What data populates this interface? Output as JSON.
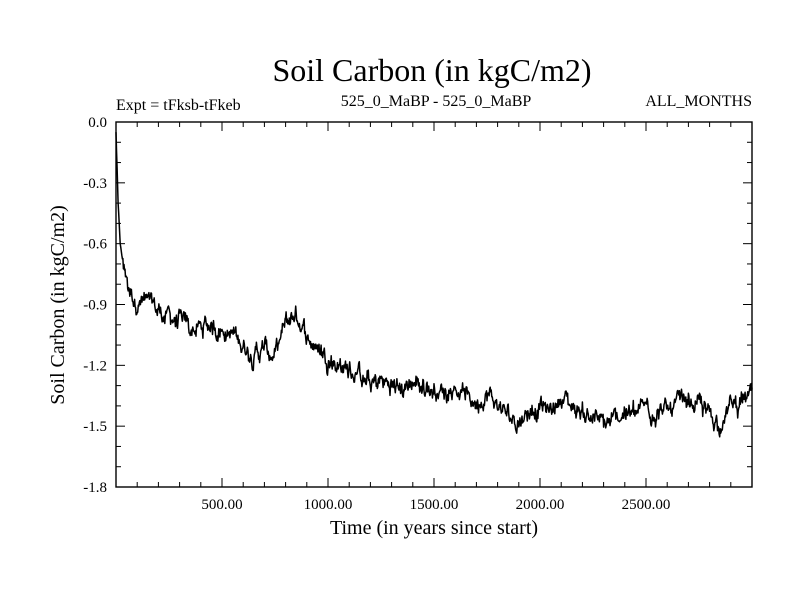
{
  "chart_data": {
    "type": "line",
    "title": "Soil Carbon (in kgC/m2)",
    "subtitle_left": "Expt = tFksb-tFkeb",
    "subtitle_center": "525_0_MaBP - 525_0_MaBP",
    "subtitle_right": "ALL_MONTHS",
    "xlabel": "Time (in years since start)",
    "ylabel": "Soil Carbon (in kgC/m2)",
    "xlim": [
      0,
      3000
    ],
    "ylim": [
      -1.8,
      0.0
    ],
    "x_ticks": [
      500,
      1000,
      1500,
      2000,
      2500
    ],
    "x_tick_labels": [
      "500.00",
      "1000.00",
      "1500.00",
      "2000.00",
      "2500.00"
    ],
    "y_ticks": [
      0.0,
      -0.3,
      -0.6,
      -0.9,
      -1.2,
      -1.5,
      -1.8
    ],
    "y_tick_labels": [
      "0.0",
      "-0.3",
      "-0.6",
      "-0.9",
      "-1.2",
      "-1.5",
      "-1.8"
    ],
    "line_color": "#000000",
    "series": [
      {
        "name": "Soil Carbon",
        "x": [
          0,
          10,
          20,
          40,
          60,
          80,
          100,
          150,
          200,
          250,
          300,
          350,
          400,
          450,
          500,
          550,
          600,
          650,
          700,
          750,
          800,
          850,
          900,
          950,
          1000,
          1050,
          1100,
          1150,
          1200,
          1250,
          1300,
          1350,
          1400,
          1450,
          1500,
          1550,
          1600,
          1650,
          1700,
          1750,
          1800,
          1850,
          1900,
          1950,
          2000,
          2050,
          2100,
          2150,
          2200,
          2250,
          2300,
          2350,
          2400,
          2450,
          2500,
          2550,
          2600,
          2650,
          2700,
          2750,
          2800,
          2850,
          2900,
          2950,
          3000
        ],
        "values": [
          -0.05,
          -0.4,
          -0.6,
          -0.75,
          -0.82,
          -0.86,
          -0.88,
          -0.9,
          -0.93,
          -0.96,
          -0.99,
          -1.02,
          -1.02,
          -1.0,
          -1.02,
          -1.05,
          -1.1,
          -1.14,
          -1.12,
          -1.16,
          -1.0,
          -0.95,
          -1.05,
          -1.12,
          -1.15,
          -1.2,
          -1.22,
          -1.25,
          -1.3,
          -1.28,
          -1.3,
          -1.32,
          -1.28,
          -1.3,
          -1.32,
          -1.33,
          -1.3,
          -1.35,
          -1.38,
          -1.34,
          -1.4,
          -1.45,
          -1.47,
          -1.42,
          -1.4,
          -1.43,
          -1.35,
          -1.4,
          -1.43,
          -1.45,
          -1.5,
          -1.48,
          -1.42,
          -1.45,
          -1.4,
          -1.42,
          -1.43,
          -1.4,
          -1.38,
          -1.4,
          -1.45,
          -1.48,
          -1.4,
          -1.38,
          -1.35
        ]
      }
    ]
  }
}
